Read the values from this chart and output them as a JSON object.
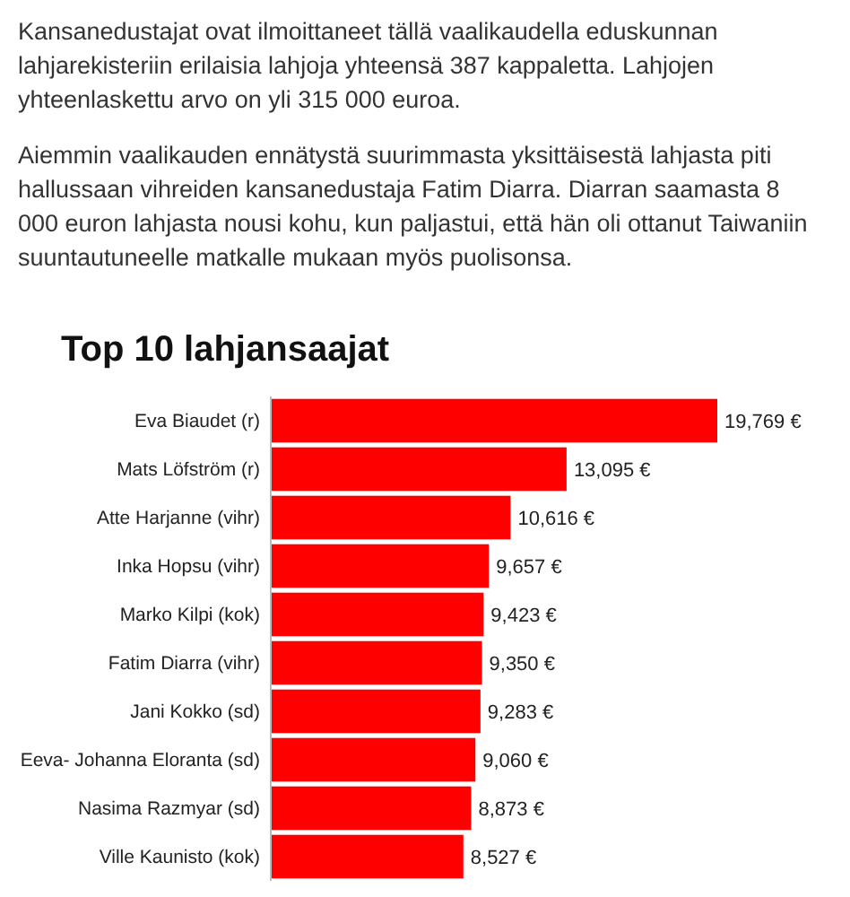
{
  "chart_data": {
    "type": "bar",
    "orientation": "horizontal",
    "title": "Top 10 lahjansaajat",
    "annotations": [
      "Kansanedustajat ovat ilmoittaneet tällä vaalikaudella eduskunnan lahjarekisteriin erilaisia lahjoja yhteensä 387 kappaletta. Lahjojen yhteenlaskettu arvo on yli 315 000 euroa.",
      "Aiemmin vaalikauden ennätystä suurimmasta yksittäisestä lahjasta piti hallussaan vihreiden kansanedustaja Fatim Diarra. Diarran saamasta 8 000 euron lahjasta nousi kohu, kun paljastui, että hän oli ottanut Taiwaniin suuntautuneelle matkalle mukaan myös puolisonsa."
    ],
    "categories": [
      "Eva Biaudet (r)",
      "Mats Löfström (r)",
      "Atte Harjanne (vihr)",
      "Inka Hopsu (vihr)",
      "Marko Kilpi (kok)",
      "Fatim Diarra (vihr)",
      "Jani Kokko (sd)",
      "Eeva- Johanna Eloranta (sd)",
      "Nasima Razmyar (sd)",
      "Ville Kaunisto (kok)"
    ],
    "values": [
      19769,
      13095,
      10616,
      9657,
      9423,
      9350,
      9283,
      9060,
      8873,
      8527
    ],
    "value_labels": [
      "19,769 €",
      "13,095 €",
      "10,616 €",
      "9,657 €",
      "9,423 €",
      "9,350 €",
      "9,283 €",
      "9,060 €",
      "8,873 €",
      "8,527 €"
    ],
    "color": "#ff0000"
  }
}
